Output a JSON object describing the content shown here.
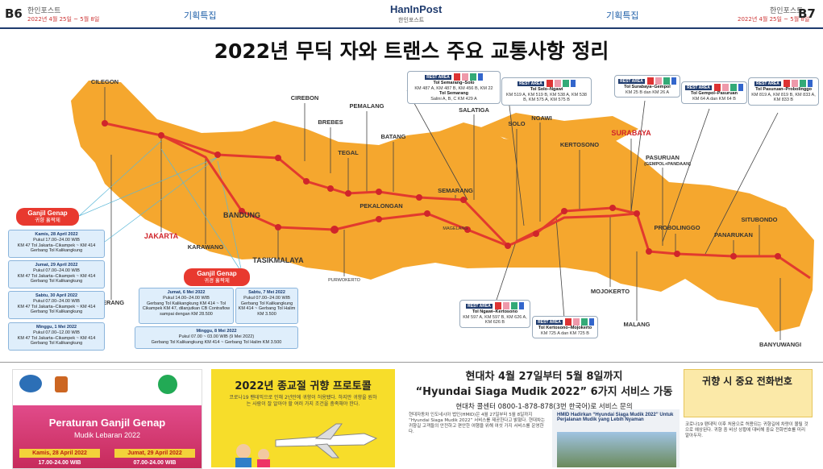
{
  "header": {
    "left_page": "B6",
    "left_masthead": "한인포스트",
    "left_date": "2022년 4월 25일 ~ 5월 8일",
    "left_section": "기획특집",
    "logo": "HanInPost",
    "logo_sub": "한인포스트",
    "right_section": "기획특집",
    "right_date": "2022년 4월 25일 ~ 5월 8일",
    "right_masthead": "한인포스트",
    "right_page": "B7"
  },
  "title": "2022년 무딕 자와 트랜스 주요 교통사항 정리",
  "cities": [
    "CILEGON",
    "SERANG",
    "JAKARTA",
    "KARAWANG",
    "BANDUNG",
    "TASIKMALAYA",
    "CIREBON",
    "BREBES",
    "TEGAL",
    "PEMALANG",
    "BATANG",
    "PEKALONGAN",
    "SEMARANG",
    "MAGELANG",
    "PURWOKERTO",
    "SALATIGA",
    "SOLO",
    "NGAWI",
    "KERTOSONO",
    "SURABAYA",
    "PASURUAN",
    "(GEMPOL+PANDAAN)",
    "MOJOKERTO",
    "MALANG",
    "PROBOLINGGO",
    "SITUBONDO",
    "PANARUKAN",
    "BANYUWANGI"
  ],
  "rest_area_label": "REST AREA",
  "rest_areas": [
    {
      "items": [
        {
          "title": "Tol Semarang–Solo",
          "detail": "KM 487 A, KM 487 B, KM 456 B, KM 22"
        },
        {
          "title": "Tol Semarang",
          "detail": "Salini A, B, C KM 429 A"
        }
      ]
    },
    {
      "items": [
        {
          "title": "Tol Solo–Ngawi",
          "detail": "KM 519 A, KM 519 B, KM 538 A, KM 538 B, KM 575 A, KM 575 B"
        }
      ]
    },
    {
      "items": [
        {
          "title": "Tol Surabaya–Gempol",
          "detail": "KM 25 B dan KM 26 A"
        }
      ]
    },
    {
      "items": [
        {
          "title": "Tol Gempol–Pasuruan",
          "detail": "KM 64 A dan KM 64 B"
        }
      ]
    },
    {
      "items": [
        {
          "title": "Tol Pasuruan–Probolinggo",
          "detail": "KM 819 A, KM 819 B, KM 833 A, KM 833 B"
        }
      ]
    },
    {
      "items": [
        {
          "title": "Tol Ngawi–Kertosono",
          "detail": "KM 597 A, KM 597 B, KM 626 A, KM 626 B"
        }
      ]
    },
    {
      "items": [
        {
          "title": "Tol Kertosono–Mojokerto",
          "detail": "KM 725 A dan KM 725 B"
        }
      ]
    }
  ],
  "ganjil_mudik": {
    "title": "Ganjil Genap",
    "subtitle": "귀향 홀짝제",
    "entries": [
      {
        "day": "Kamis, 28 April 2022",
        "time": "Pukul 17.00–24.00 WIB",
        "route": "KM 47 Tol Jakarta–Cikampek ~ KM 414 Gerbang Tol Kalikangkung"
      },
      {
        "day": "Jumat, 29 April 2022",
        "time": "Pukul 07.00–24.00 WIB",
        "route": "KM 47 Tol Jakarta–Cikampek ~ KM 414 Gerbang Tol Kalikangkung"
      },
      {
        "day": "Sabtu, 30 April 2022",
        "time": "Pukul 07.00–24.00 WIB",
        "route": "KM 47 Tol Jakarta–Cikampek ~ KM 414 Gerbang Tol Kalikangkung"
      },
      {
        "day": "Minggu, 1 Mei 2022",
        "time": "Pukul 07.00–12.00 WIB",
        "route": "KM 47 Tol Jakarta–Cikampek ~ KM 414 Gerbang Tol Kalikangkung"
      }
    ]
  },
  "ganjil_balik": {
    "title": "Ganjil Genap",
    "subtitle": "귀경 홀짝제",
    "entries": [
      {
        "day": "Jumat, 6 Mei 2022",
        "time": "Pukul 14.00–24.00 WIB",
        "route": "Gerbang Tol Kalikangkung KM 414 ~ Tol Cikampek KM 47, dilanjutkan CB Contraflow sampai dengan KM 28.500"
      },
      {
        "day": "Sabtu, 7 Mei 2022",
        "time": "Pukul 07.00–24.00 WIB",
        "route": "Gerbang Tol Kalikangkung KM 414 ~ Gerbang Tol Halim KM 3.500"
      },
      {
        "day": "Minggu, 8 Mei 2022",
        "time": "Pukul 07.00 ~ 03.00 WIB (9 Mei 2022)",
        "route": "Gerbang Tol Kalikangkung KM 414 ~ Gerbang Tol Halim KM 3.500"
      }
    ]
  },
  "poster": {
    "title": "Peraturan Ganjil Genap",
    "subtitle": "Mudik Lebaran 2022",
    "day1": "Kamis, 28 April 2022",
    "time1": "17.00-24.00 WIB",
    "day2": "Jumat, 29 April 2022",
    "time2": "07.00-24.00 WIB"
  },
  "protocol": {
    "title": "2022년 종교절 귀향 프로토콜",
    "body": "코로나19 팬데믹으로 인해 2년만에 귀향이 허용됐다. 하지만 귀향을 원하는 사람이 잘 알아야 할 여러 가지 조건을 충족해야 한다."
  },
  "article": {
    "headline1": "현대차 4월 27일부터 5월 8일까지",
    "headline2": "“Hyundai Siaga Mudik 2022” 6가지 서비스 가동",
    "subhead": "현대차 콜센터 0800-1-878-878(3번 한국어)로 서비스 문의",
    "body": "현대자동차 인도네시아 법인(HMID)은 4월 27일부터 5월 8일까지 “Hyundai Siaga Mudik 2022” 서비스를 제공한다고 밝혔다. 현대차는 귀향길 고객들의 안전하고 편안한 여행을 위해 여섯 가지 서비스를 운영한다.",
    "caption": "HMID Hadirkan “Hyundai Siaga Mudik 2022” Untuk Perjalanan Mudik yang Lebih Nyaman"
  },
  "phones": {
    "title": "귀향 시 중요 전화번호",
    "body": "코로나19 팬데믹 이후 처음으로 허용되는 귀향길에 차량이 몰릴 것으로 예상된다. 귀향 중 비상 상황에 대비해 중요 전화번호를 미리 알아두자."
  }
}
